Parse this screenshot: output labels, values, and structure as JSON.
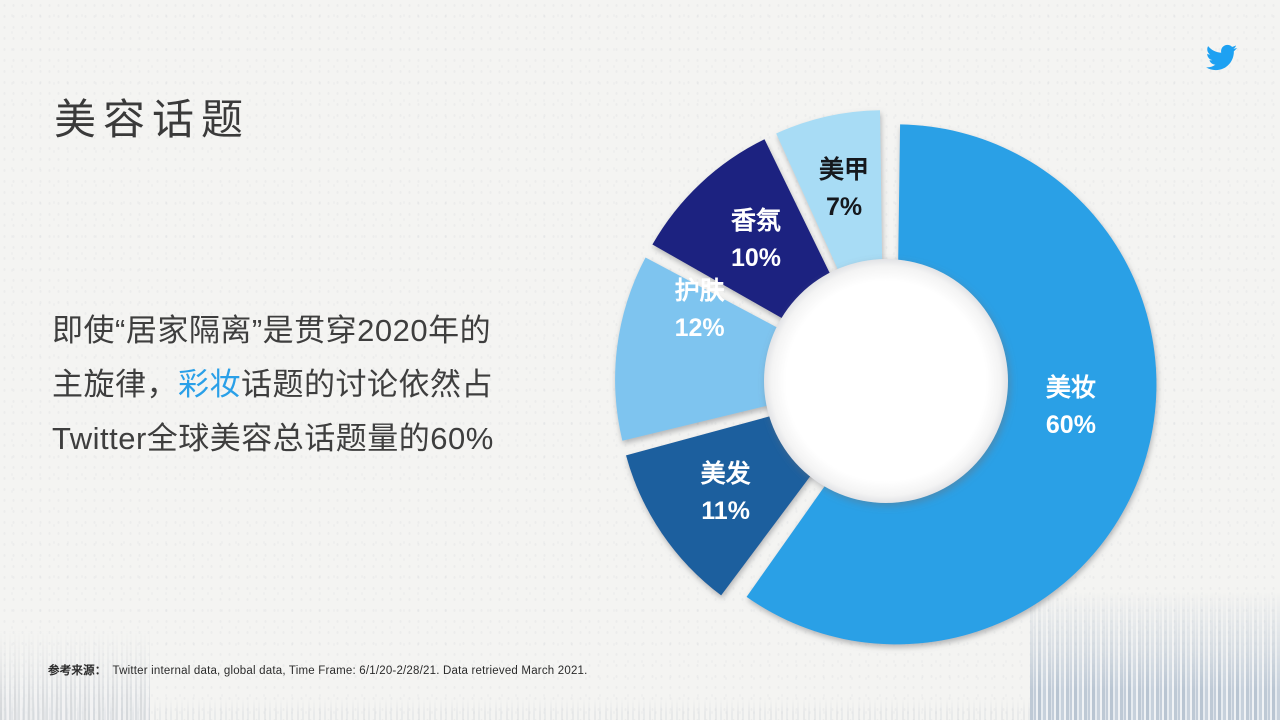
{
  "header": {
    "title": "美容话题"
  },
  "logo": {
    "name": "twitter-bird",
    "color": "#1da1f2"
  },
  "paragraph": {
    "accent_color": "#2aa0e8",
    "lines": [
      {
        "segments": [
          {
            "text": "即使“居家隔离”是贯穿2020年的"
          }
        ]
      },
      {
        "segments": [
          {
            "text": "主旋律，"
          },
          {
            "text": "彩妆",
            "accent": true
          },
          {
            "text": "话题的讨论依然占"
          }
        ]
      },
      {
        "segments": [
          {
            "text": "Twitter全球美容总话题量的60%"
          }
        ]
      }
    ]
  },
  "chart_data": {
    "type": "pie",
    "donut": true,
    "start_angle_deg": 0,
    "direction": "clockwise",
    "value_suffix": "%",
    "slices": [
      {
        "label": "美妆",
        "value": 60,
        "color": "#2aa0e6",
        "label_color": "#ffffff"
      },
      {
        "label": "美发",
        "value": 11,
        "color": "#1d5f9e",
        "label_color": "#ffffff"
      },
      {
        "label": "护肤",
        "value": 12,
        "color": "#7ec4ef",
        "label_color": "#ffffff"
      },
      {
        "label": "香氛",
        "value": 10,
        "color": "#1a2380",
        "label_color": "#ffffff"
      },
      {
        "label": "美甲",
        "value": 7,
        "color": "#a8dcf5",
        "label_color": "#15181d"
      }
    ]
  },
  "footer": {
    "source_label": "参考来源：",
    "source_text": "Twitter internal data, global data, Time Frame: 6/1/20-2/28/21. Data retrieved March 2021."
  }
}
